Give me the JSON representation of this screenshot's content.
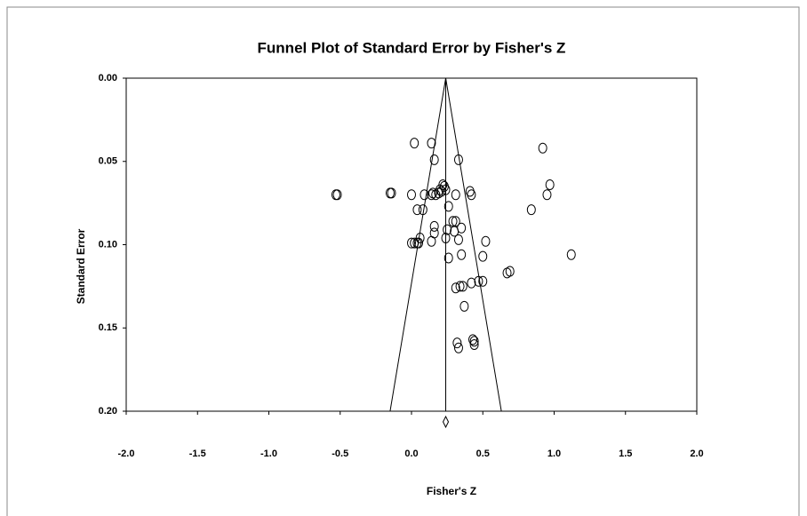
{
  "chart_data": {
    "type": "scatter",
    "title": "Funnel Plot of Standard Error by Fisher's Z",
    "x_label": "Fisher's Z",
    "y_label": "Standard Error",
    "xlim": [
      -2.0,
      2.0
    ],
    "xticks": [
      {
        "value": -2,
        "label": "-2.0"
      },
      {
        "value": -1.5,
        "label": "-1.5"
      },
      {
        "value": -1,
        "label": "-1.0"
      },
      {
        "value": -0.5,
        "label": "-0.5"
      },
      {
        "value": 0,
        "label": "0.0"
      },
      {
        "value": 0.5,
        "label": "0.5"
      },
      {
        "value": 1,
        "label": "1.0"
      },
      {
        "value": 1.5,
        "label": "1.5"
      },
      {
        "value": 2,
        "label": "2.0"
      }
    ],
    "ylim": [
      0,
      0.2
    ],
    "yticks": [
      {
        "value": 0,
        "label": "0.00"
      },
      {
        "value": 0.05,
        "label": "0.05"
      },
      {
        "value": 0.1,
        "label": "0.10"
      },
      {
        "value": 0.15,
        "label": "0.15"
      },
      {
        "value": 0.2,
        "label": "0.20"
      }
    ],
    "y_inverted": true,
    "funnel": {
      "apex": 0.24,
      "base": [
        -0.15,
        0.63
      ]
    },
    "x": [
      -0.53,
      -0.52,
      -0.15,
      -0.14,
      0.02,
      0.14,
      0.16,
      0.33,
      0.92,
      0.0,
      0.09,
      0.14,
      0.15,
      0.17,
      0.2,
      0.22,
      0.23,
      0.21,
      0.24,
      0.19,
      0.26,
      0.31,
      0.41,
      0.42,
      0.97,
      0.95,
      0.84,
      0.04,
      0.08,
      0.16,
      0.16,
      0.25,
      0.29,
      0.31,
      0.35,
      0.3,
      0.33,
      0.24,
      0.06,
      0.04,
      0.0,
      0.02,
      0.05,
      0.14,
      0.52,
      0.26,
      0.35,
      0.5,
      1.12,
      0.67,
      0.69,
      0.31,
      0.34,
      0.36,
      0.42,
      0.47,
      0.5,
      0.37,
      0.43,
      0.44,
      0.44,
      0.32,
      0.33
    ],
    "values": [
      0.07,
      0.07,
      0.069,
      0.069,
      0.039,
      0.039,
      0.049,
      0.049,
      0.042,
      0.07,
      0.07,
      0.07,
      0.069,
      0.07,
      0.067,
      0.064,
      0.065,
      0.068,
      0.067,
      0.069,
      0.077,
      0.07,
      0.068,
      0.07,
      0.064,
      0.07,
      0.079,
      0.079,
      0.079,
      0.089,
      0.093,
      0.091,
      0.086,
      0.086,
      0.09,
      0.092,
      0.097,
      0.096,
      0.096,
      0.099,
      0.099,
      0.099,
      0.099,
      0.098,
      0.098,
      0.108,
      0.106,
      0.107,
      0.106,
      0.117,
      0.116,
      0.126,
      0.125,
      0.125,
      0.123,
      0.122,
      0.122,
      0.137,
      0.157,
      0.158,
      0.16,
      0.159,
      0.162
    ]
  }
}
